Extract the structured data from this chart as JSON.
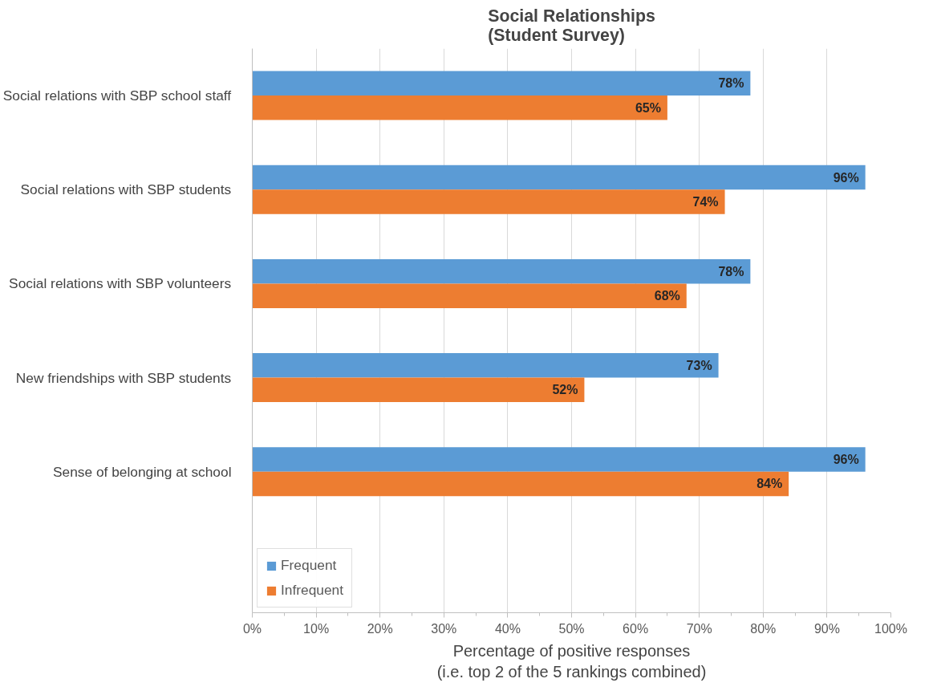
{
  "chart_data": {
    "type": "bar",
    "orientation": "horizontal",
    "title": "Social Relationships\n(Student Survey)",
    "xlabel": "Percentage of positive responses\n(i.e. top 2 of the 5 rankings combined)",
    "categories": [
      "Social relations with SBP school staff",
      "Social relations with SBP students",
      "Social relations with SBP volunteers",
      "New friendships with SBP students",
      "Sense of belonging at school"
    ],
    "series": [
      {
        "name": "Frequent",
        "color": "#5b9bd5",
        "values": [
          78,
          96,
          78,
          73,
          96
        ],
        "value_labels": [
          "78%",
          "96%",
          "78%",
          "73%",
          "96%"
        ]
      },
      {
        "name": "Infrequent",
        "color": "#ed7d31",
        "values": [
          65,
          74,
          68,
          52,
          84
        ],
        "value_labels": [
          "65%",
          "74%",
          "68%",
          "52%",
          "84%"
        ]
      }
    ],
    "xlim": [
      0,
      100
    ],
    "xticks": [
      {
        "value": 0,
        "label": "0%"
      },
      {
        "value": 10,
        "label": "10%"
      },
      {
        "value": 20,
        "label": "20%"
      },
      {
        "value": 30,
        "label": "30%"
      },
      {
        "value": 40,
        "label": "40%"
      },
      {
        "value": 50,
        "label": "50%"
      },
      {
        "value": 60,
        "label": "60%"
      },
      {
        "value": 70,
        "label": "70%"
      },
      {
        "value": 80,
        "label": "80%"
      },
      {
        "value": 90,
        "label": "90%"
      },
      {
        "value": 100,
        "label": "100%"
      }
    ],
    "grid": "x",
    "legend": "bottom left"
  }
}
